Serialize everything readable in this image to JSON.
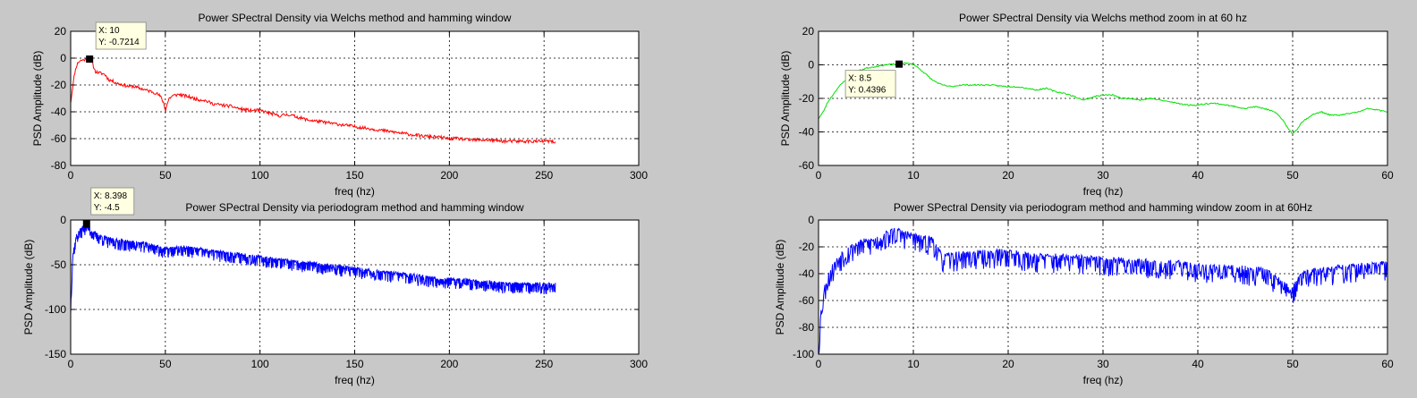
{
  "chart_data": [
    {
      "type": "line",
      "title": "Power SPectral Density via Welchs method and hamming window",
      "xlabel": "freq (hz)",
      "ylabel": "PSD Amplitude (dB)",
      "xlim": [
        0,
        300
      ],
      "ylim": [
        -80,
        20
      ],
      "xticks": [
        0,
        50,
        100,
        150,
        200,
        250,
        300
      ],
      "yticks": [
        -80,
        -60,
        -40,
        -20,
        0,
        20
      ],
      "grid": true,
      "color": "#ff0000",
      "series": [
        {
          "x": [
            0,
            0.5,
            1,
            2,
            3,
            4,
            5,
            6,
            7,
            8,
            9,
            10,
            11,
            12,
            13,
            15,
            18,
            20,
            22,
            25,
            28,
            30,
            33,
            35,
            38,
            40,
            43,
            45,
            47,
            48,
            49,
            50,
            51,
            52,
            54,
            57,
            60,
            63,
            65,
            68,
            70,
            75,
            80,
            85,
            90,
            95,
            100,
            105,
            110,
            115,
            120,
            125,
            130,
            135,
            140,
            145,
            150,
            155,
            160,
            165,
            170,
            175,
            180,
            185,
            190,
            195,
            200,
            205,
            210,
            215,
            220,
            225,
            230,
            235,
            240,
            245,
            250,
            253,
            256
          ],
          "y": [
            -33,
            -28,
            -22,
            -12,
            -6,
            -3,
            -2,
            -1.5,
            -1.2,
            -1,
            -0.9,
            -0.7214,
            -2,
            -6,
            -10,
            -11,
            -12,
            -16,
            -17,
            -19,
            -20,
            -21,
            -21,
            -22,
            -23,
            -24,
            -25,
            -26,
            -28,
            -30,
            -33,
            -39,
            -34,
            -30,
            -28,
            -27,
            -28,
            -29,
            -30,
            -31,
            -31,
            -34,
            -35,
            -36,
            -38,
            -39,
            -39,
            -41,
            -43,
            -42,
            -44,
            -46,
            -47,
            -48,
            -49,
            -50,
            -51,
            -52,
            -53,
            -54,
            -55,
            -56,
            -57,
            -58,
            -58.5,
            -59,
            -60,
            -60,
            -61,
            -61,
            -61,
            -61.5,
            -62,
            -62,
            -62,
            -62,
            -62,
            -62,
            -63
          ]
        }
      ],
      "datatip": {
        "x_label": "X: 10",
        "y_label": "Y: -0.7214",
        "x": 10,
        "y": -0.7214
      }
    },
    {
      "type": "line",
      "title": "Power SPectral Density via Welchs method zoom in at 60 hz",
      "xlabel": "freq (hz)",
      "ylabel": "PSD Amplitude (dB)",
      "xlim": [
        0,
        60
      ],
      "ylim": [
        -60,
        20
      ],
      "xticks": [
        0,
        10,
        20,
        30,
        40,
        50,
        60
      ],
      "yticks": [
        -60,
        -40,
        -20,
        0,
        20
      ],
      "grid": true,
      "color": "#00e000",
      "series": [
        {
          "x": [
            0,
            0.5,
            1,
            2,
            3,
            4,
            5,
            6,
            7,
            8,
            8.5,
            9,
            10,
            11,
            12,
            13,
            14,
            15,
            16,
            17,
            18,
            19,
            20,
            21,
            22,
            23,
            24,
            25,
            26,
            27,
            28,
            29,
            30,
            31,
            32,
            33,
            34,
            35,
            36,
            37,
            38,
            39,
            40,
            41,
            42,
            43,
            44,
            45,
            46,
            47,
            48,
            48.5,
            49,
            49.5,
            50,
            50.5,
            51,
            52,
            53,
            54,
            55,
            56,
            57,
            58,
            59,
            60
          ],
          "y": [
            -32,
            -28,
            -22,
            -14,
            -8,
            -4,
            -2,
            -1,
            0,
            0.4,
            0.4396,
            1,
            0.5,
            -4,
            -9,
            -12,
            -13,
            -12,
            -12,
            -12,
            -12,
            -12.5,
            -13,
            -13,
            -14,
            -15,
            -14,
            -16,
            -17,
            -19,
            -21,
            -19,
            -18,
            -18,
            -20,
            -20,
            -21,
            -20,
            -21,
            -22,
            -23,
            -24,
            -24,
            -23,
            -23,
            -24,
            -25,
            -26,
            -25,
            -26,
            -28,
            -30,
            -33,
            -38,
            -41,
            -38,
            -34,
            -30,
            -28,
            -30,
            -30,
            -29,
            -28,
            -26,
            -27,
            -28
          ]
        }
      ],
      "datatip": {
        "x_label": "X: 8.5",
        "y_label": "Y: 0.4396",
        "x": 8.5,
        "y": 0.4396
      }
    },
    {
      "type": "line",
      "title": "Power SPectral Density via periodogram method and hamming window",
      "xlabel": "freq (hz)",
      "ylabel": "PSD Amplitude (dB)",
      "xlim": [
        0,
        300
      ],
      "ylim": [
        -150,
        0
      ],
      "xticks": [
        0,
        50,
        100,
        150,
        200,
        250,
        300
      ],
      "yticks": [
        -150,
        -100,
        -50,
        0
      ],
      "grid": true,
      "color": "#0000ff",
      "series": [
        {
          "x": [
            0,
            1,
            3,
            5,
            8.398,
            12,
            20,
            30,
            40,
            50,
            60,
            70,
            80,
            90,
            100,
            110,
            120,
            130,
            140,
            150,
            160,
            170,
            180,
            190,
            200,
            210,
            220,
            230,
            240,
            250,
            256
          ],
          "y": [
            -100,
            -40,
            -18,
            -12,
            -4.5,
            -15,
            -22,
            -25,
            -27,
            -33,
            -31,
            -34,
            -37,
            -39,
            -42,
            -45,
            -48,
            -50,
            -52,
            -55,
            -58,
            -60,
            -62,
            -65,
            -67,
            -68,
            -70,
            -72,
            -72,
            -73,
            -72
          ]
        }
      ],
      "datatip": {
        "x_label": "X: 8.398",
        "y_label": "Y: -4.5",
        "x": 8.398,
        "y": -4.5
      }
    },
    {
      "type": "line",
      "title": "Power SPectral Density via periodogram method and hamming window zoom in at 60Hz",
      "xlabel": "freq (hz)",
      "ylabel": "PSD Amplitude (dB)",
      "xlim": [
        0,
        60
      ],
      "ylim": [
        -100,
        0
      ],
      "xticks": [
        0,
        10,
        20,
        30,
        40,
        50,
        60
      ],
      "yticks": [
        -100,
        -80,
        -60,
        -40,
        -20,
        0
      ],
      "grid": true,
      "color": "#0000ff",
      "series": [
        {
          "x": [
            0,
            0.3,
            0.8,
            1.5,
            2.5,
            4,
            6,
            8,
            9,
            10,
            11,
            12,
            13,
            15,
            18,
            20,
            22,
            25,
            28,
            30,
            33,
            35,
            38,
            40,
            42,
            45,
            47,
            48,
            49,
            50,
            51,
            53,
            55,
            57,
            59,
            60
          ],
          "y": [
            -95,
            -65,
            -45,
            -35,
            -25,
            -18,
            -15,
            -8,
            -10,
            -12,
            -15,
            -14,
            -28,
            -26,
            -25,
            -24,
            -27,
            -28,
            -29,
            -30,
            -31,
            -32,
            -33,
            -35,
            -36,
            -37,
            -38,
            -42,
            -48,
            -52,
            -40,
            -38,
            -36,
            -35,
            -34,
            -33
          ]
        }
      ]
    }
  ]
}
